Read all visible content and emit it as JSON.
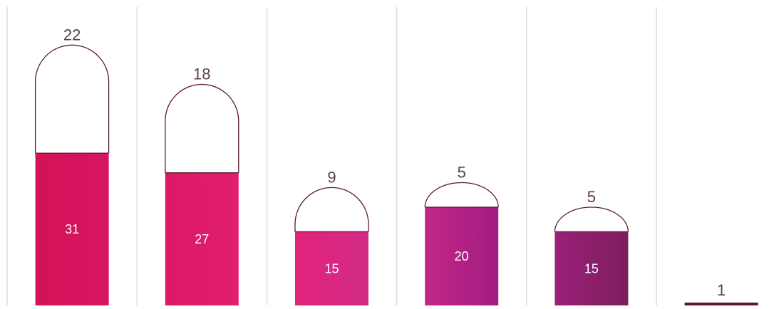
{
  "chart_data": {
    "type": "bar",
    "categories": [
      "",
      "",
      "",
      "",
      "",
      ""
    ],
    "series": [
      {
        "values": [
          31,
          27,
          15,
          20,
          15,
          0
        ]
      },
      {
        "values": [
          22,
          18,
          9,
          5,
          5,
          1
        ]
      }
    ],
    "bar_colors": [
      [
        "#D31258",
        "#D71561"
      ],
      [
        "#DD1867",
        "#E11E70"
      ],
      [
        "#E2237A",
        "#D12B86"
      ],
      [
        "#C22586",
        "#A21D82"
      ],
      [
        "#9A2078",
        "#7E1D5E"
      ],
      [
        "#7A1D56",
        "#6F1A4E"
      ]
    ],
    "outline_color": "#5A1A2E",
    "label_color": "#5A4048",
    "inner_label_color": "#ffffff",
    "gridlines": true
  }
}
